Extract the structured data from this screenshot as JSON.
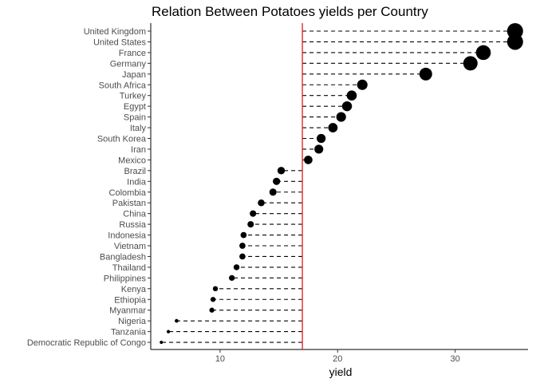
{
  "chart_data": {
    "type": "lollipop",
    "title": "Relation Between Potatoes yields per Country",
    "xlabel": "yield",
    "ylabel": "",
    "xlim": [
      4.1,
      36.2
    ],
    "xticks": [
      10,
      20,
      30
    ],
    "reference_line": {
      "value": 17,
      "color": "#e41a1c"
    },
    "grid": false,
    "legend": "none",
    "point_color": "#000000",
    "segment_style": "dashed",
    "categories": [
      "United Kingdom",
      "United States",
      "France",
      "Germany",
      "Japan",
      "South Africa",
      "Turkey",
      "Egypt",
      "Spain",
      "Italy",
      "South Korea",
      "Iran",
      "Mexico",
      "Brazil",
      "India",
      "Colombia",
      "Pakistan",
      "China",
      "Russia",
      "Indonesia",
      "Vietnam",
      "Bangladesh",
      "Thailand",
      "Philippines",
      "Kenya",
      "Ethiopia",
      "Myanmar",
      "Nigeria",
      "Tanzania",
      "Democratic Republic of Congo"
    ],
    "values": [
      35.1,
      35.1,
      32.4,
      31.3,
      27.5,
      22.1,
      21.2,
      20.8,
      20.3,
      19.6,
      18.6,
      18.4,
      17.5,
      15.2,
      14.8,
      14.5,
      13.5,
      12.8,
      12.6,
      12.0,
      11.9,
      11.9,
      11.4,
      11.0,
      9.6,
      9.4,
      9.3,
      6.3,
      5.6,
      5.0
    ]
  }
}
